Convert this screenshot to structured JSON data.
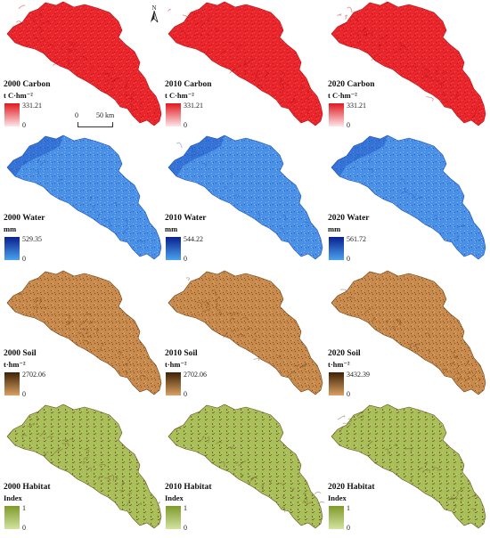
{
  "north_label": "N",
  "scale": {
    "zero": "0",
    "distance": "50 km"
  },
  "rows": [
    {
      "name": "carbon",
      "colors": {
        "base": "#e8262b",
        "dark": "#b90f14",
        "light": "#f25a5c",
        "legend_top": "#e0181e",
        "legend_bottom": "#fde6e8"
      },
      "panels": [
        {
          "title": "2000 Carbon",
          "unit": "t C·hm⁻²",
          "max": "331.21",
          "min": "0"
        },
        {
          "title": "2010 Carbon",
          "unit": "t C·hm⁻²",
          "max": "331.21",
          "min": "0"
        },
        {
          "title": "2020 Carbon",
          "unit": "t C·hm⁻²",
          "max": "331.21",
          "min": "0"
        }
      ]
    },
    {
      "name": "water",
      "colors": {
        "base": "#4a90e6",
        "dark": "#1a4fc0",
        "light": "#8ec2f3",
        "legend_top": "#0a1f8f",
        "legend_bottom": "#4aa3ee"
      },
      "panels": [
        {
          "title": "2000 Water",
          "unit": "mm",
          "max": "529.35",
          "min": "0"
        },
        {
          "title": "2010 Water",
          "unit": "mm",
          "max": "544.22",
          "min": "0"
        },
        {
          "title": "2020 Water",
          "unit": "mm",
          "max": "561.72",
          "min": "0"
        }
      ]
    },
    {
      "name": "soil",
      "colors": {
        "base": "#c98a4e",
        "dark": "#6b3f12",
        "light": "#ddb07c",
        "legend_top": "#3e2205",
        "legend_bottom": "#d9a063"
      },
      "panels": [
        {
          "title": "2000 Soil",
          "unit": "t·hm⁻²",
          "max": "2702.06",
          "min": "0"
        },
        {
          "title": "2010 Soil",
          "unit": "t·hm⁻²",
          "max": "2702.06",
          "min": "0"
        },
        {
          "title": "2020 Soil",
          "unit": "t·hm⁻²",
          "max": "3432.39",
          "min": "0"
        }
      ]
    },
    {
      "name": "habitat",
      "colors": {
        "base": "#a9bf5a",
        "dark": "#6a4f22",
        "light": "#c6d88a",
        "legend_top": "#7f9a2a",
        "legend_bottom": "#d3e3a0"
      },
      "panels": [
        {
          "title": "2000 Habitat",
          "unit": "Index",
          "max": "1",
          "min": "0"
        },
        {
          "title": "2010 Habitat",
          "unit": "Index",
          "max": "1",
          "min": "0"
        },
        {
          "title": "2020 Habitat",
          "unit": "Index",
          "max": "1",
          "min": "0"
        }
      ]
    }
  ]
}
